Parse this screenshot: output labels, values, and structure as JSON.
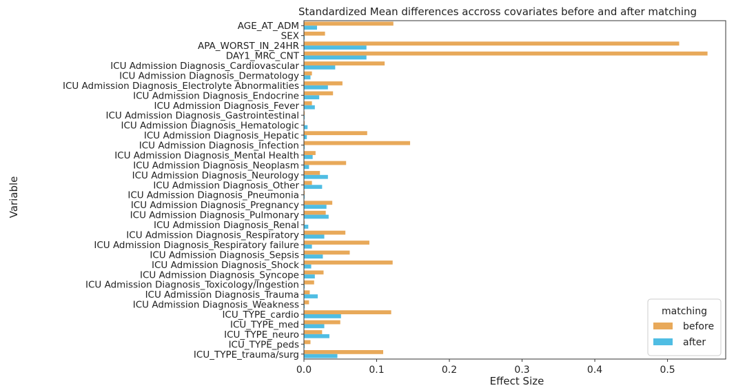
{
  "chart_data": {
    "type": "bar",
    "orientation": "horizontal",
    "title": "Standardized Mean differences accross covariates before and after matching",
    "xlabel": "Effect Size",
    "ylabel": "Variable",
    "xlim": [
      0,
      0.58
    ],
    "xticks": [
      0.0,
      0.1,
      0.2,
      0.3,
      0.4,
      0.5
    ],
    "xtick_labels": [
      "0.0",
      "0.1",
      "0.2",
      "0.3",
      "0.4",
      "0.5"
    ],
    "grid": false,
    "legend": {
      "title": "matching",
      "placement": "bottom-right"
    },
    "categories": [
      "AGE_AT_ADM",
      "SEX",
      "APA_WORST_IN_24HR",
      "DAY1_MRC_CNT",
      "ICU Admission Diagnosis_Cardiovascular",
      "ICU Admission Diagnosis_Dermatology",
      "ICU Admission Diagnosis_Electrolyte Abnormalities",
      "ICU Admission Diagnosis_Endocrine",
      "ICU Admission Diagnosis_Fever",
      "ICU Admission Diagnosis_Gastrointestinal",
      "ICU Admission Diagnosis_Hematologic",
      "ICU Admission Diagnosis_Hepatic",
      "ICU Admission Diagnosis_Infection",
      "ICU Admission Diagnosis_Mental Health",
      "ICU Admission Diagnosis_Neoplasm",
      "ICU Admission Diagnosis_Neurology",
      "ICU Admission Diagnosis_Other",
      "ICU Admission Diagnosis_Pneumonia",
      "ICU Admission Diagnosis_Pregnancy",
      "ICU Admission Diagnosis_Pulmonary",
      "ICU Admission Diagnosis_Renal",
      "ICU Admission Diagnosis_Respiratory",
      "ICU Admission Diagnosis_Respiratory failure",
      "ICU Admission Diagnosis_Sepsis",
      "ICU Admission Diagnosis_Shock",
      "ICU Admission Diagnosis_Syncope",
      "ICU Admission Diagnosis_Toxicology/Ingestion",
      "ICU Admission Diagnosis_Trauma",
      "ICU Admission Diagnosis_Weakness",
      "ICU_TYPE_cardio",
      "ICU_TYPE_med",
      "ICU_TYPE_neuro",
      "ICU_TYPE_peds",
      "ICU_TYPE_trauma/surg"
    ],
    "series": [
      {
        "name": "before",
        "color": "#e8a95a",
        "values": [
          0.123,
          0.029,
          0.516,
          0.555,
          0.111,
          0.011,
          0.053,
          0.04,
          0.011,
          0.001,
          0.001,
          0.087,
          0.146,
          0.016,
          0.058,
          0.022,
          0.011,
          0.001,
          0.039,
          0.03,
          0.001,
          0.057,
          0.09,
          0.063,
          0.122,
          0.027,
          0.014,
          0.008,
          0.007,
          0.12,
          0.05,
          0.025,
          0.009,
          0.109
        ]
      },
      {
        "name": "after",
        "color": "#4fbde3",
        "values": [
          0.018,
          0.001,
          0.086,
          0.086,
          0.043,
          0.009,
          0.033,
          0.021,
          0.015,
          0.001,
          0.005,
          0.004,
          0.001,
          0.012,
          0.007,
          0.033,
          0.025,
          0.001,
          0.031,
          0.034,
          0.006,
          0.028,
          0.011,
          0.026,
          0.01,
          0.015,
          0.001,
          0.019,
          0.001,
          0.051,
          0.028,
          0.035,
          0.001,
          0.046
        ]
      }
    ]
  }
}
